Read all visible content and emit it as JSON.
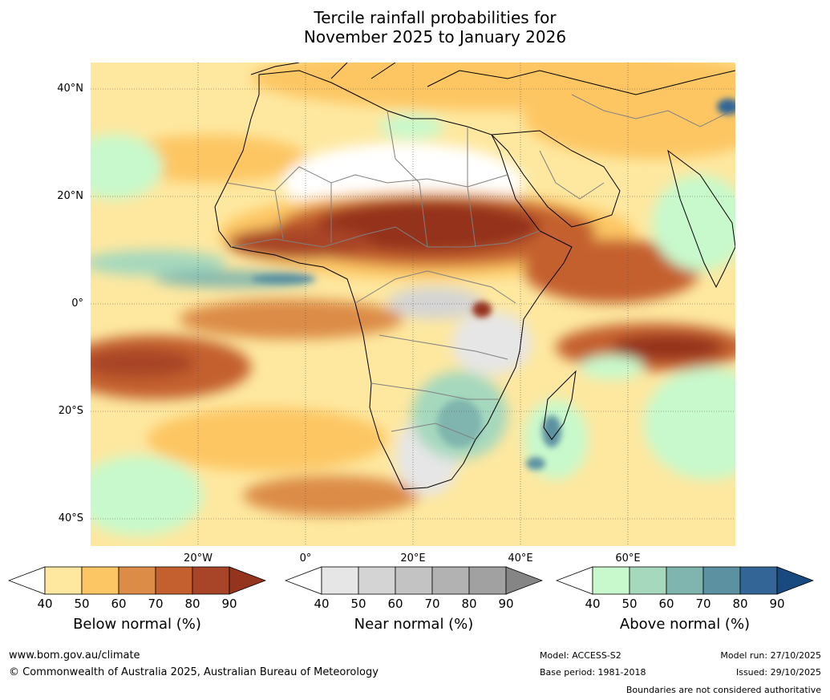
{
  "title": {
    "line1": "Tercile rainfall probabilities for",
    "line2": "November 2025 to January 2026"
  },
  "map": {
    "lat_labels": [
      "40°N",
      "20°N",
      "0°",
      "20°S",
      "40°S"
    ],
    "lon_labels": [
      "20°W",
      "0°",
      "20°E",
      "40°E",
      "60°E"
    ],
    "region": "Africa"
  },
  "legends": [
    {
      "name": "Below normal (%)",
      "ticks": [
        "40",
        "50",
        "60",
        "70",
        "80",
        "90"
      ],
      "colors": [
        "#ffffff",
        "#fee8a0",
        "#fdc664",
        "#dc8c46",
        "#c4602f",
        "#a84427",
        "#94331e"
      ]
    },
    {
      "name": "Near normal (%)",
      "ticks": [
        "40",
        "50",
        "60",
        "70",
        "80",
        "90"
      ],
      "colors": [
        "#ffffff",
        "#e6e6e6",
        "#d4d4d4",
        "#c3c3c3",
        "#b2b2b2",
        "#a1a1a1",
        "#858585"
      ]
    },
    {
      "name": "Above normal (%)",
      "ticks": [
        "40",
        "50",
        "60",
        "70",
        "80",
        "90"
      ],
      "colors": [
        "#ffffff",
        "#c8f9cc",
        "#a5d8bd",
        "#7fb5ae",
        "#5b91a1",
        "#336696",
        "#184a80"
      ]
    }
  ],
  "footer": {
    "website": "www.bom.gov.au/climate",
    "copyright": "© Commonwealth of Australia 2025, Australian Bureau of Meteorology",
    "model": "Model: ACCESS-S2",
    "base_period": "Base period: 1981-2018",
    "model_run": "Model run: 27/10/2025",
    "issued": "Issued: 29/10/2025",
    "disclaimer": "Boundaries are not considered authoritative"
  }
}
